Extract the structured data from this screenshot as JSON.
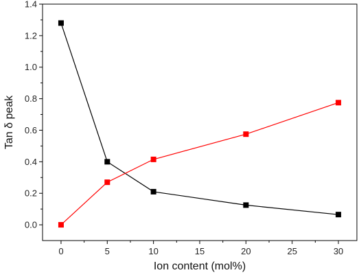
{
  "chart_data": {
    "type": "line",
    "xlabel": "Ion content (mol%)",
    "ylabel": "Tan δ peak",
    "xlim": [
      -2,
      32
    ],
    "ylim": [
      -0.1,
      1.4
    ],
    "xticks": [
      0,
      5,
      10,
      15,
      20,
      25,
      30
    ],
    "yticks": [
      0.0,
      0.2,
      0.4,
      0.6,
      0.8,
      1.0,
      1.2,
      1.4
    ],
    "xtick_labels": [
      "0",
      "5",
      "10",
      "15",
      "20",
      "25",
      "30"
    ],
    "ytick_labels": [
      "0.0",
      "0.2",
      "0.4",
      "0.6",
      "0.8",
      "1.0",
      "1.2",
      "1.4"
    ],
    "grid": false,
    "series": [
      {
        "color": "#000000",
        "marker": "square",
        "x": [
          0,
          5,
          10,
          20,
          30
        ],
        "y": [
          1.28,
          0.4,
          0.21,
          0.125,
          0.065
        ]
      },
      {
        "color": "#ff0000",
        "marker": "square",
        "x": [
          0,
          5,
          10,
          20,
          30
        ],
        "y": [
          0.0,
          0.27,
          0.415,
          0.575,
          0.775
        ]
      }
    ]
  }
}
